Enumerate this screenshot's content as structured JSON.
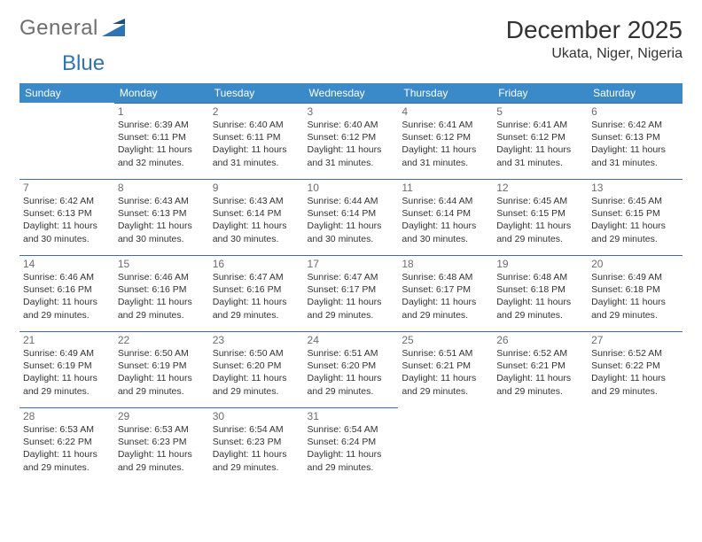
{
  "brand": {
    "general": "General",
    "blue": "Blue"
  },
  "header": {
    "month_title": "December 2025",
    "location": "Ukata, Niger, Nigeria"
  },
  "colors": {
    "header_bg": "#3a8ac9",
    "header_text": "#ffffff",
    "cell_border": "#3a6ea5",
    "daynum_color": "#6c6c6c",
    "body_text": "#333333",
    "logo_gray": "#6f6f6f",
    "logo_blue": "#2e74b5",
    "background": "#ffffff"
  },
  "weekdays": [
    "Sunday",
    "Monday",
    "Tuesday",
    "Wednesday",
    "Thursday",
    "Friday",
    "Saturday"
  ],
  "weeks": [
    [
      null,
      {
        "n": "1",
        "sr": "Sunrise: 6:39 AM",
        "ss": "Sunset: 6:11 PM",
        "d1": "Daylight: 11 hours",
        "d2": "and 32 minutes."
      },
      {
        "n": "2",
        "sr": "Sunrise: 6:40 AM",
        "ss": "Sunset: 6:11 PM",
        "d1": "Daylight: 11 hours",
        "d2": "and 31 minutes."
      },
      {
        "n": "3",
        "sr": "Sunrise: 6:40 AM",
        "ss": "Sunset: 6:12 PM",
        "d1": "Daylight: 11 hours",
        "d2": "and 31 minutes."
      },
      {
        "n": "4",
        "sr": "Sunrise: 6:41 AM",
        "ss": "Sunset: 6:12 PM",
        "d1": "Daylight: 11 hours",
        "d2": "and 31 minutes."
      },
      {
        "n": "5",
        "sr": "Sunrise: 6:41 AM",
        "ss": "Sunset: 6:12 PM",
        "d1": "Daylight: 11 hours",
        "d2": "and 31 minutes."
      },
      {
        "n": "6",
        "sr": "Sunrise: 6:42 AM",
        "ss": "Sunset: 6:13 PM",
        "d1": "Daylight: 11 hours",
        "d2": "and 31 minutes."
      }
    ],
    [
      {
        "n": "7",
        "sr": "Sunrise: 6:42 AM",
        "ss": "Sunset: 6:13 PM",
        "d1": "Daylight: 11 hours",
        "d2": "and 30 minutes."
      },
      {
        "n": "8",
        "sr": "Sunrise: 6:43 AM",
        "ss": "Sunset: 6:13 PM",
        "d1": "Daylight: 11 hours",
        "d2": "and 30 minutes."
      },
      {
        "n": "9",
        "sr": "Sunrise: 6:43 AM",
        "ss": "Sunset: 6:14 PM",
        "d1": "Daylight: 11 hours",
        "d2": "and 30 minutes."
      },
      {
        "n": "10",
        "sr": "Sunrise: 6:44 AM",
        "ss": "Sunset: 6:14 PM",
        "d1": "Daylight: 11 hours",
        "d2": "and 30 minutes."
      },
      {
        "n": "11",
        "sr": "Sunrise: 6:44 AM",
        "ss": "Sunset: 6:14 PM",
        "d1": "Daylight: 11 hours",
        "d2": "and 30 minutes."
      },
      {
        "n": "12",
        "sr": "Sunrise: 6:45 AM",
        "ss": "Sunset: 6:15 PM",
        "d1": "Daylight: 11 hours",
        "d2": "and 29 minutes."
      },
      {
        "n": "13",
        "sr": "Sunrise: 6:45 AM",
        "ss": "Sunset: 6:15 PM",
        "d1": "Daylight: 11 hours",
        "d2": "and 29 minutes."
      }
    ],
    [
      {
        "n": "14",
        "sr": "Sunrise: 6:46 AM",
        "ss": "Sunset: 6:16 PM",
        "d1": "Daylight: 11 hours",
        "d2": "and 29 minutes."
      },
      {
        "n": "15",
        "sr": "Sunrise: 6:46 AM",
        "ss": "Sunset: 6:16 PM",
        "d1": "Daylight: 11 hours",
        "d2": "and 29 minutes."
      },
      {
        "n": "16",
        "sr": "Sunrise: 6:47 AM",
        "ss": "Sunset: 6:16 PM",
        "d1": "Daylight: 11 hours",
        "d2": "and 29 minutes."
      },
      {
        "n": "17",
        "sr": "Sunrise: 6:47 AM",
        "ss": "Sunset: 6:17 PM",
        "d1": "Daylight: 11 hours",
        "d2": "and 29 minutes."
      },
      {
        "n": "18",
        "sr": "Sunrise: 6:48 AM",
        "ss": "Sunset: 6:17 PM",
        "d1": "Daylight: 11 hours",
        "d2": "and 29 minutes."
      },
      {
        "n": "19",
        "sr": "Sunrise: 6:48 AM",
        "ss": "Sunset: 6:18 PM",
        "d1": "Daylight: 11 hours",
        "d2": "and 29 minutes."
      },
      {
        "n": "20",
        "sr": "Sunrise: 6:49 AM",
        "ss": "Sunset: 6:18 PM",
        "d1": "Daylight: 11 hours",
        "d2": "and 29 minutes."
      }
    ],
    [
      {
        "n": "21",
        "sr": "Sunrise: 6:49 AM",
        "ss": "Sunset: 6:19 PM",
        "d1": "Daylight: 11 hours",
        "d2": "and 29 minutes."
      },
      {
        "n": "22",
        "sr": "Sunrise: 6:50 AM",
        "ss": "Sunset: 6:19 PM",
        "d1": "Daylight: 11 hours",
        "d2": "and 29 minutes."
      },
      {
        "n": "23",
        "sr": "Sunrise: 6:50 AM",
        "ss": "Sunset: 6:20 PM",
        "d1": "Daylight: 11 hours",
        "d2": "and 29 minutes."
      },
      {
        "n": "24",
        "sr": "Sunrise: 6:51 AM",
        "ss": "Sunset: 6:20 PM",
        "d1": "Daylight: 11 hours",
        "d2": "and 29 minutes."
      },
      {
        "n": "25",
        "sr": "Sunrise: 6:51 AM",
        "ss": "Sunset: 6:21 PM",
        "d1": "Daylight: 11 hours",
        "d2": "and 29 minutes."
      },
      {
        "n": "26",
        "sr": "Sunrise: 6:52 AM",
        "ss": "Sunset: 6:21 PM",
        "d1": "Daylight: 11 hours",
        "d2": "and 29 minutes."
      },
      {
        "n": "27",
        "sr": "Sunrise: 6:52 AM",
        "ss": "Sunset: 6:22 PM",
        "d1": "Daylight: 11 hours",
        "d2": "and 29 minutes."
      }
    ],
    [
      {
        "n": "28",
        "sr": "Sunrise: 6:53 AM",
        "ss": "Sunset: 6:22 PM",
        "d1": "Daylight: 11 hours",
        "d2": "and 29 minutes."
      },
      {
        "n": "29",
        "sr": "Sunrise: 6:53 AM",
        "ss": "Sunset: 6:23 PM",
        "d1": "Daylight: 11 hours",
        "d2": "and 29 minutes."
      },
      {
        "n": "30",
        "sr": "Sunrise: 6:54 AM",
        "ss": "Sunset: 6:23 PM",
        "d1": "Daylight: 11 hours",
        "d2": "and 29 minutes."
      },
      {
        "n": "31",
        "sr": "Sunrise: 6:54 AM",
        "ss": "Sunset: 6:24 PM",
        "d1": "Daylight: 11 hours",
        "d2": "and 29 minutes."
      },
      null,
      null,
      null
    ]
  ]
}
